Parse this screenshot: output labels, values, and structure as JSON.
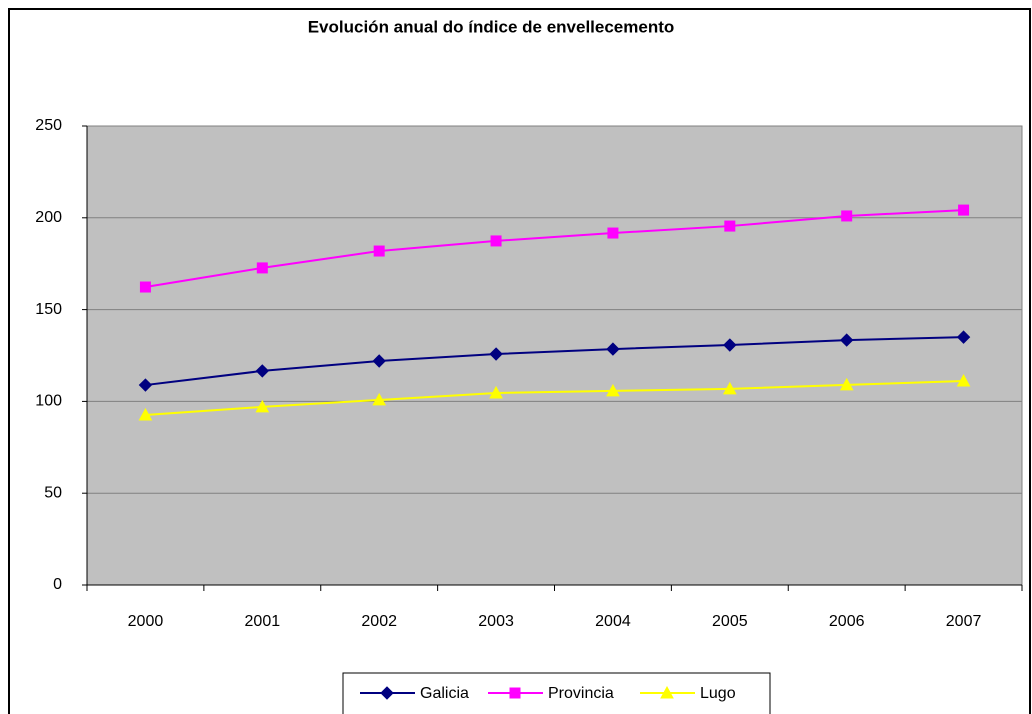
{
  "chart_data": {
    "type": "line",
    "title": "Evolución anual do índice de envellecemento",
    "categories": [
      "2000",
      "2001",
      "2002",
      "2003",
      "2004",
      "2005",
      "2006",
      "2007"
    ],
    "series": [
      {
        "name": "Galicia",
        "color": "#000080",
        "marker": "diamond",
        "values": [
          108.9,
          116.6,
          122,
          125.8,
          128.5,
          130.7,
          133.4,
          135
        ]
      },
      {
        "name": "Provincia",
        "color": "#ff00ff",
        "marker": "square",
        "values": [
          162.3,
          172.7,
          181.9,
          187.4,
          191.7,
          195.5,
          201,
          204.2
        ]
      },
      {
        "name": "Lugo",
        "color": "#ffff00",
        "marker": "triangle",
        "values": [
          92.6,
          97,
          100.8,
          104.6,
          105.7,
          106.8,
          109,
          111.1
        ]
      }
    ],
    "ylim": [
      0,
      250
    ],
    "yticks": [
      0,
      50,
      100,
      150,
      200,
      250
    ],
    "grid": true,
    "legend": "bottom"
  }
}
